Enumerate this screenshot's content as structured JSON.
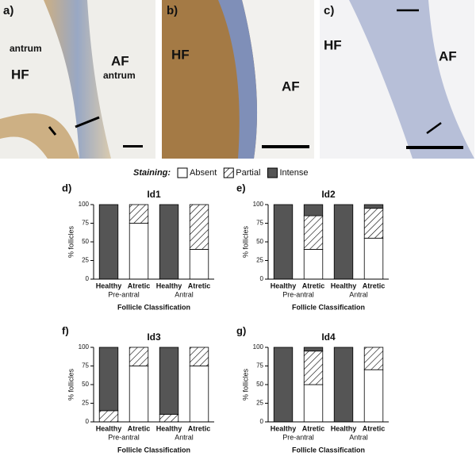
{
  "panels": [
    {
      "label": "a)",
      "texts": [
        "antrum",
        "HF",
        "AF",
        "antrum"
      ]
    },
    {
      "label": "b)",
      "texts": [
        "HF",
        "AF"
      ]
    },
    {
      "label": "c)",
      "texts": [
        "HF",
        "AF"
      ]
    }
  ],
  "legend_title": "Staining:",
  "chart_data": [
    {
      "type": "stacked_bar",
      "panel_label": "d)",
      "title": "Id1",
      "ylabel": "% follicles",
      "xlabel": "Follicle Classification",
      "categories": [
        "Healthy",
        "Atretic",
        "Healthy",
        "Atretic"
      ],
      "groups": [
        "Pre-antral",
        "Antral"
      ],
      "ylim": [
        0,
        100
      ],
      "yticks": [
        0,
        25,
        50,
        75,
        100
      ],
      "series": [
        {
          "name": "Absent",
          "color": "#ffffff",
          "hatch": false,
          "values": [
            0,
            75,
            0,
            40
          ]
        },
        {
          "name": "Partial",
          "color": "#ffffff",
          "hatch": true,
          "values": [
            0,
            25,
            0,
            60
          ]
        },
        {
          "name": "Intense",
          "color": "#555555",
          "hatch": false,
          "values": [
            100,
            0,
            100,
            0
          ]
        }
      ]
    },
    {
      "type": "stacked_bar",
      "panel_label": "e)",
      "title": "Id2",
      "ylabel": "% follicles",
      "xlabel": "Follicle Classification",
      "categories": [
        "Healthy",
        "Atretic",
        "Healthy",
        "Atretic"
      ],
      "groups": [
        "Pre-antral",
        "Antral"
      ],
      "ylim": [
        0,
        100
      ],
      "yticks": [
        0,
        25,
        50,
        75,
        100
      ],
      "series": [
        {
          "name": "Absent",
          "color": "#ffffff",
          "hatch": false,
          "values": [
            0,
            40,
            0,
            55
          ]
        },
        {
          "name": "Partial",
          "color": "#ffffff",
          "hatch": true,
          "values": [
            0,
            45,
            0,
            40
          ]
        },
        {
          "name": "Intense",
          "color": "#555555",
          "hatch": false,
          "values": [
            100,
            15,
            100,
            5
          ]
        }
      ]
    },
    {
      "type": "stacked_bar",
      "panel_label": "f)",
      "title": "Id3",
      "ylabel": "% follicles",
      "xlabel": "Follicle Classification",
      "categories": [
        "Healthy",
        "Atretic",
        "Healthy",
        "Atretic"
      ],
      "groups": [
        "Pre-antral",
        "Antral"
      ],
      "ylim": [
        0,
        100
      ],
      "yticks": [
        0,
        25,
        50,
        75,
        100
      ],
      "series": [
        {
          "name": "Absent",
          "color": "#ffffff",
          "hatch": false,
          "values": [
            0,
            75,
            0,
            75
          ]
        },
        {
          "name": "Partial",
          "color": "#ffffff",
          "hatch": true,
          "values": [
            15,
            25,
            10,
            25
          ]
        },
        {
          "name": "Intense",
          "color": "#555555",
          "hatch": false,
          "values": [
            85,
            0,
            90,
            0
          ]
        }
      ]
    },
    {
      "type": "stacked_bar",
      "panel_label": "g)",
      "title": "Id4",
      "ylabel": "% follicles",
      "xlabel": "Follicle Classification",
      "categories": [
        "Healthy",
        "Atretic",
        "Healthy",
        "Atretic"
      ],
      "groups": [
        "Pre-antral",
        "Antral"
      ],
      "ylim": [
        0,
        100
      ],
      "yticks": [
        0,
        25,
        50,
        75,
        100
      ],
      "series": [
        {
          "name": "Absent",
          "color": "#ffffff",
          "hatch": false,
          "values": [
            0,
            50,
            0,
            70
          ]
        },
        {
          "name": "Partial",
          "color": "#ffffff",
          "hatch": true,
          "values": [
            0,
            45,
            0,
            30
          ]
        },
        {
          "name": "Intense",
          "color": "#555555",
          "hatch": false,
          "values": [
            100,
            5,
            100,
            0
          ]
        }
      ]
    }
  ]
}
